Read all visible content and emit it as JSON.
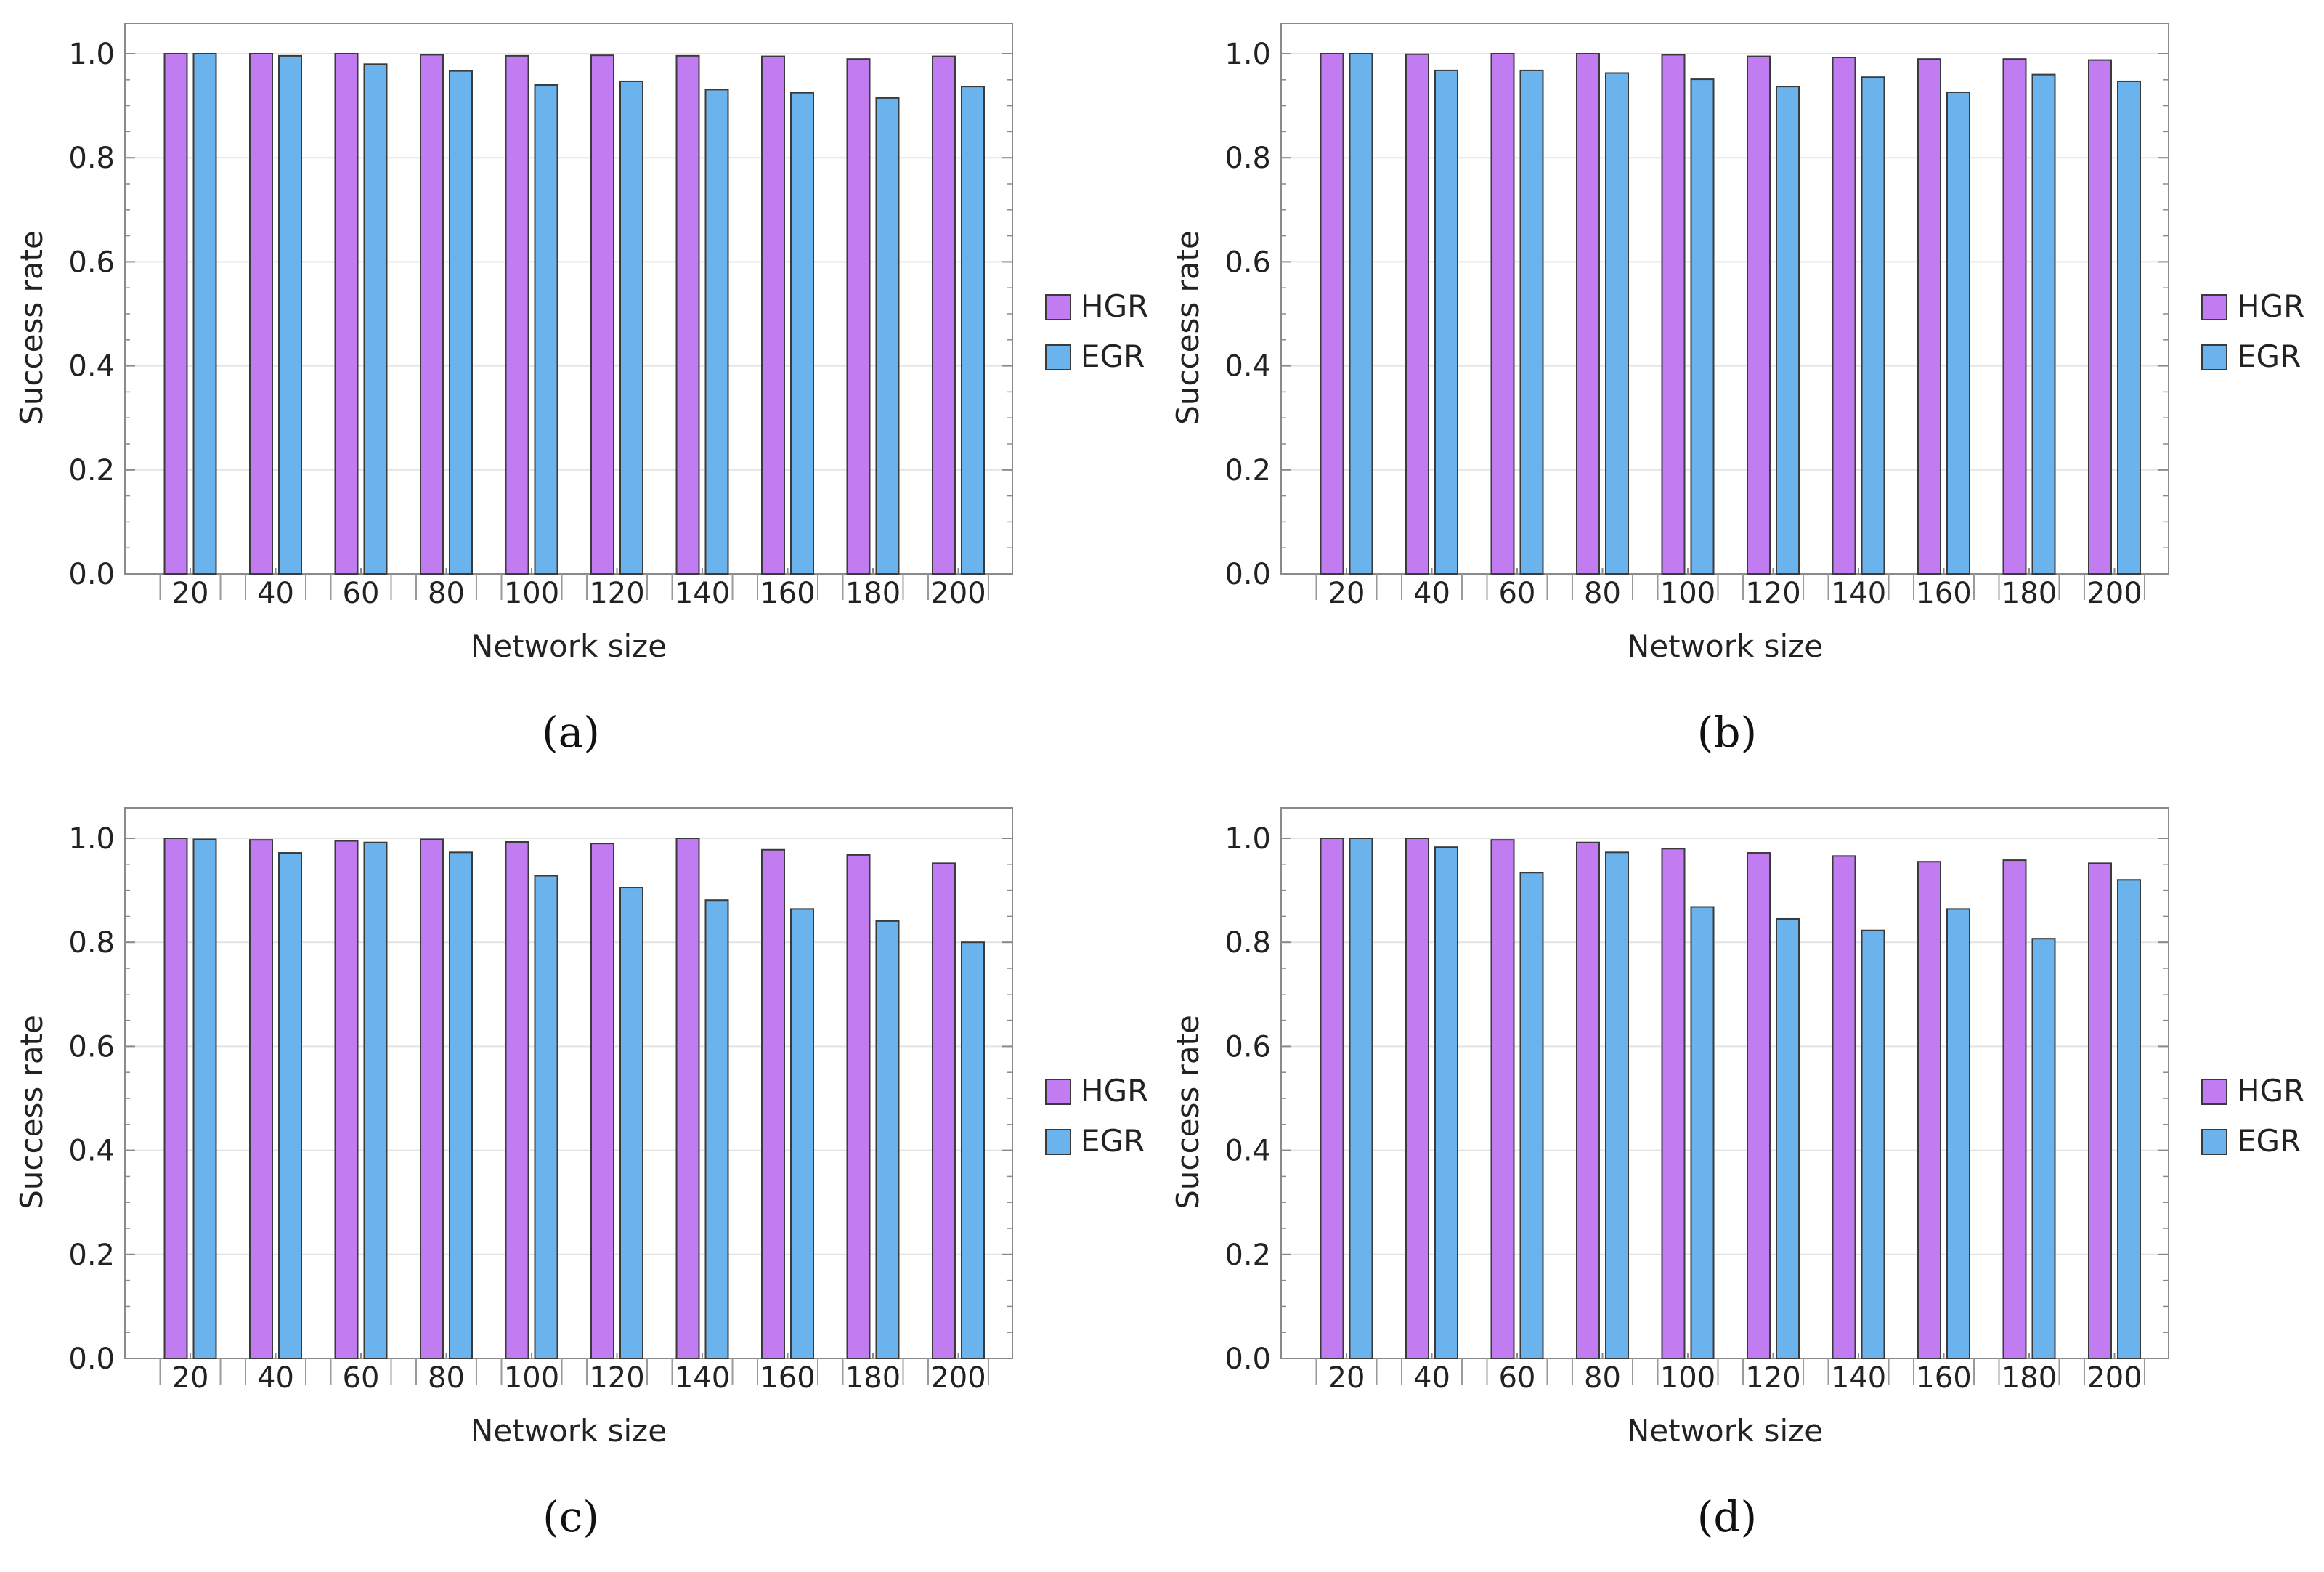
{
  "colors": {
    "hgr": "#c07cf0",
    "egr": "#6ab3ec",
    "bar_stroke": "#3a3a3a",
    "frame": "#8a8a8a",
    "grid": "#e3e3e3",
    "text": "#222222"
  },
  "chart_data": [
    {
      "type": "bar",
      "panel": "a",
      "caption": "(a)",
      "xlabel": "Network size",
      "ylabel": "Success rate",
      "ylim": [
        0,
        1.05
      ],
      "yticks": [
        "0.0",
        "0.2",
        "0.4",
        "0.6",
        "0.8",
        "1.0"
      ],
      "categories": [
        "20",
        "40",
        "60",
        "80",
        "100",
        "120",
        "140",
        "160",
        "180",
        "200"
      ],
      "series": [
        {
          "name": "HGR",
          "values": [
            1.0,
            1.0,
            1.0,
            0.998,
            0.996,
            0.997,
            0.996,
            0.995,
            0.99,
            0.995
          ]
        },
        {
          "name": "EGR",
          "values": [
            1.0,
            0.996,
            0.98,
            0.967,
            0.94,
            0.947,
            0.931,
            0.925,
            0.915,
            0.937
          ]
        }
      ],
      "legend": [
        "HGR",
        "EGR"
      ]
    },
    {
      "type": "bar",
      "panel": "b",
      "caption": "(b)",
      "xlabel": "Network size",
      "ylabel": "Success rate",
      "ylim": [
        0,
        1.05
      ],
      "yticks": [
        "0.0",
        "0.2",
        "0.4",
        "0.6",
        "0.8",
        "1.0"
      ],
      "categories": [
        "20",
        "40",
        "60",
        "80",
        "100",
        "120",
        "140",
        "160",
        "180",
        "200"
      ],
      "series": [
        {
          "name": "HGR",
          "values": [
            1.0,
            0.999,
            1.0,
            1.0,
            0.998,
            0.995,
            0.993,
            0.99,
            0.99,
            0.988
          ]
        },
        {
          "name": "EGR",
          "values": [
            1.0,
            0.968,
            0.968,
            0.963,
            0.951,
            0.937,
            0.955,
            0.926,
            0.96,
            0.947
          ]
        }
      ],
      "legend": [
        "HGR",
        "EGR"
      ]
    },
    {
      "type": "bar",
      "panel": "c",
      "caption": "(c)",
      "xlabel": "Network size",
      "ylabel": "Success rate",
      "ylim": [
        0,
        1.05
      ],
      "yticks": [
        "0.0",
        "0.2",
        "0.4",
        "0.6",
        "0.8",
        "1.0"
      ],
      "categories": [
        "20",
        "40",
        "60",
        "80",
        "100",
        "120",
        "140",
        "160",
        "180",
        "200"
      ],
      "series": [
        {
          "name": "HGR",
          "values": [
            1.0,
            0.997,
            0.995,
            0.998,
            0.993,
            0.99,
            1.0,
            0.978,
            0.968,
            0.952
          ]
        },
        {
          "name": "EGR",
          "values": [
            0.998,
            0.972,
            0.992,
            0.973,
            0.928,
            0.905,
            0.881,
            0.864,
            0.841,
            0.8
          ]
        }
      ],
      "legend": [
        "HGR",
        "EGR"
      ]
    },
    {
      "type": "bar",
      "panel": "d",
      "caption": "(d)",
      "xlabel": "Network size",
      "ylabel": "Success rate",
      "ylim": [
        0,
        1.05
      ],
      "yticks": [
        "0.0",
        "0.2",
        "0.4",
        "0.6",
        "0.8",
        "1.0"
      ],
      "categories": [
        "20",
        "40",
        "60",
        "80",
        "100",
        "120",
        "140",
        "160",
        "180",
        "200"
      ],
      "series": [
        {
          "name": "HGR",
          "values": [
            1.0,
            1.0,
            0.997,
            0.992,
            0.98,
            0.972,
            0.966,
            0.955,
            0.958,
            0.952
          ]
        },
        {
          "name": "EGR",
          "values": [
            1.0,
            0.983,
            0.934,
            0.973,
            0.868,
            0.845,
            0.823,
            0.864,
            0.807,
            0.92
          ]
        }
      ],
      "legend": [
        "HGR",
        "EGR"
      ]
    }
  ]
}
